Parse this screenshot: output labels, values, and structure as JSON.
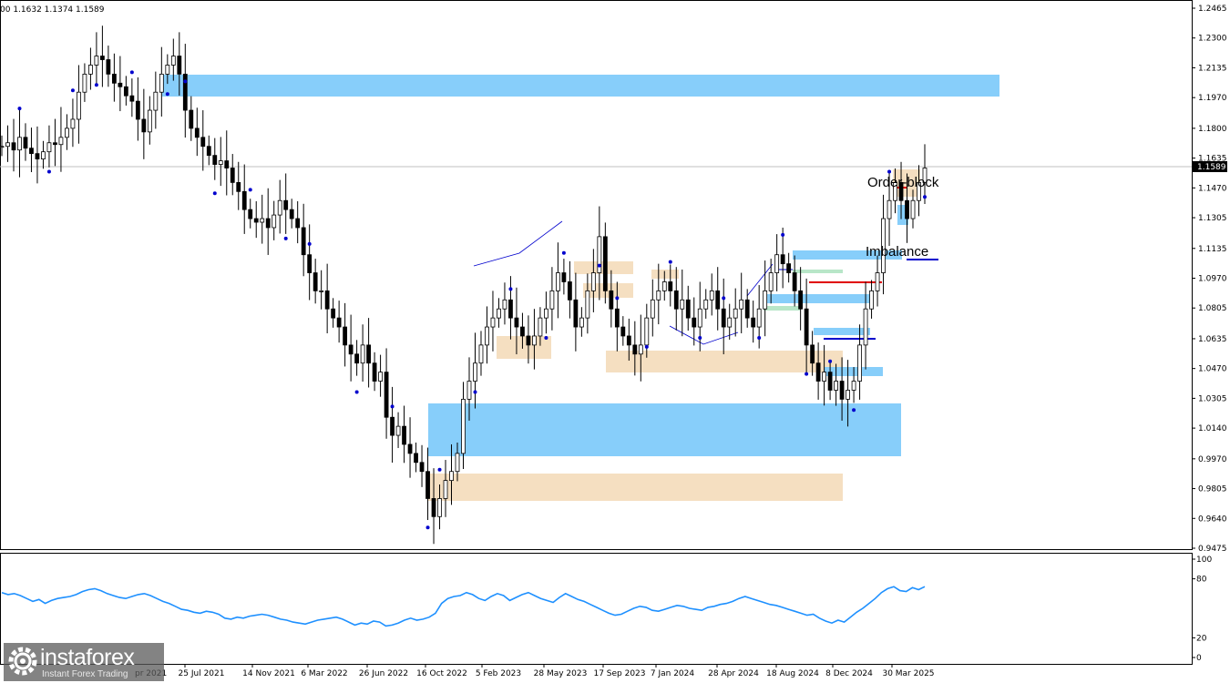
{
  "header": {
    "ohlc_text": "00 1.1632 1.1374 1.1589"
  },
  "price_tag": "1.1589",
  "brand": {
    "name": "instaforex",
    "tagline": "Instant Forex Trading"
  },
  "colors": {
    "zone_blue": "#87cefa",
    "zone_beige": "#f5dfc1",
    "line_blue": "#1e90ff",
    "marker": "#0000cd",
    "red": "#e00000"
  },
  "chart_data": [
    {
      "type": "candlestick",
      "y_ticks": [
        "1.2465",
        "1.2300",
        "1.2135",
        "1.1970",
        "1.1800",
        "1.1635",
        "1.1470",
        "1.1305",
        "1.1135",
        "1.0970",
        "1.0805",
        "1.0635",
        "1.0470",
        "1.0305",
        "1.0140",
        "0.9970",
        "0.9805",
        "0.9640",
        "0.9475"
      ],
      "ylim": [
        0.9475,
        1.2465
      ],
      "x_labels": [
        "25 Jul 2021",
        "14 Nov 2021",
        "6 Mar 2022",
        "26 Jun 2022",
        "16 Oct 2022",
        "5 Feb 2023",
        "28 May 2023",
        "17 Sep 2023",
        "7 Jan 2024",
        "28 Apr 2024",
        "18 Aug 2024",
        "8 Dec 2024",
        "30 Mar 2025"
      ],
      "x_label_partial": "pr 2021",
      "last_price": 1.1589,
      "series_close": [
        1.17,
        1.172,
        1.168,
        1.175,
        1.169,
        1.166,
        1.163,
        1.167,
        1.172,
        1.171,
        1.175,
        1.18,
        1.185,
        1.2,
        1.21,
        1.215,
        1.22,
        1.218,
        1.21,
        1.205,
        1.203,
        1.198,
        1.195,
        1.185,
        1.178,
        1.19,
        1.2,
        1.21,
        1.215,
        1.22,
        1.21,
        1.19,
        1.18,
        1.175,
        1.17,
        1.165,
        1.16,
        1.162,
        1.158,
        1.15,
        1.145,
        1.135,
        1.13,
        1.128,
        1.13,
        1.125,
        1.132,
        1.14,
        1.135,
        1.13,
        1.125,
        1.11,
        1.1,
        1.09,
        1.09,
        1.08,
        1.075,
        1.07,
        1.06,
        1.055,
        1.05,
        1.06,
        1.05,
        1.04,
        1.045,
        1.02,
        1.01,
        1.015,
        1.005,
        1.0,
        0.995,
        0.99,
        0.975,
        0.965,
        0.975,
        0.985,
        0.99,
        1.0,
        1.03,
        1.04,
        1.05,
        1.06,
        1.07,
        1.075,
        1.08,
        1.085,
        1.075,
        1.07,
        1.065,
        1.06,
        1.065,
        1.075,
        1.08,
        1.09,
        1.1,
        1.095,
        1.085,
        1.07,
        1.075,
        1.09,
        1.1,
        1.12,
        1.09,
        1.08,
        1.07,
        1.065,
        1.06,
        1.055,
        1.06,
        1.075,
        1.085,
        1.09,
        1.095,
        1.09,
        1.08,
        1.085,
        1.075,
        1.07,
        1.08,
        1.085,
        1.09,
        1.08,
        1.07,
        1.075,
        1.08,
        1.085,
        1.075,
        1.07,
        1.08,
        1.09,
        1.1,
        1.11,
        1.105,
        1.1,
        1.09,
        1.08,
        1.06,
        1.05,
        1.04,
        1.045,
        1.035,
        1.04,
        1.03,
        1.035,
        1.04,
        1.06,
        1.08,
        1.09,
        1.1,
        1.13,
        1.14,
        1.15,
        1.14,
        1.13,
        1.14,
        1.15,
        1.158
      ],
      "rsi": {
        "y_ticks": [
          "100",
          "80",
          "20",
          "0"
        ],
        "ylim": [
          0,
          100
        ],
        "values": [
          66,
          64,
          65,
          63,
          60,
          57,
          59,
          55,
          58,
          60,
          61,
          62,
          64,
          67,
          69,
          70,
          68,
          65,
          63,
          61,
          60,
          62,
          64,
          65,
          63,
          60,
          57,
          55,
          52,
          49,
          48,
          46,
          45,
          47,
          46,
          44,
          40,
          39,
          41,
          40,
          42,
          43,
          44,
          43,
          41,
          39,
          38,
          36,
          35,
          34,
          36,
          38,
          39,
          40,
          41,
          39,
          36,
          33,
          35,
          34,
          37,
          36,
          32,
          33,
          35,
          38,
          40,
          38,
          39,
          41,
          45,
          55,
          60,
          62,
          63,
          66,
          64,
          60,
          58,
          62,
          65,
          63,
          58,
          61,
          64,
          66,
          63,
          60,
          58,
          56,
          61,
          65,
          62,
          59,
          57,
          54,
          51,
          48,
          45,
          43,
          44,
          47,
          50,
          52,
          51,
          48,
          47,
          49,
          51,
          53,
          52,
          50,
          49,
          48,
          51,
          52,
          54,
          55,
          57,
          60,
          62,
          60,
          58,
          56,
          54,
          53,
          51,
          49,
          47,
          45,
          43,
          44,
          40,
          37,
          35,
          38,
          36,
          41,
          46,
          50,
          55,
          60,
          66,
          70,
          72,
          68,
          67,
          71,
          69,
          72
        ]
      }
    }
  ],
  "annotations": {
    "order_block": "Order-block",
    "imbalance": "Imbalance"
  }
}
